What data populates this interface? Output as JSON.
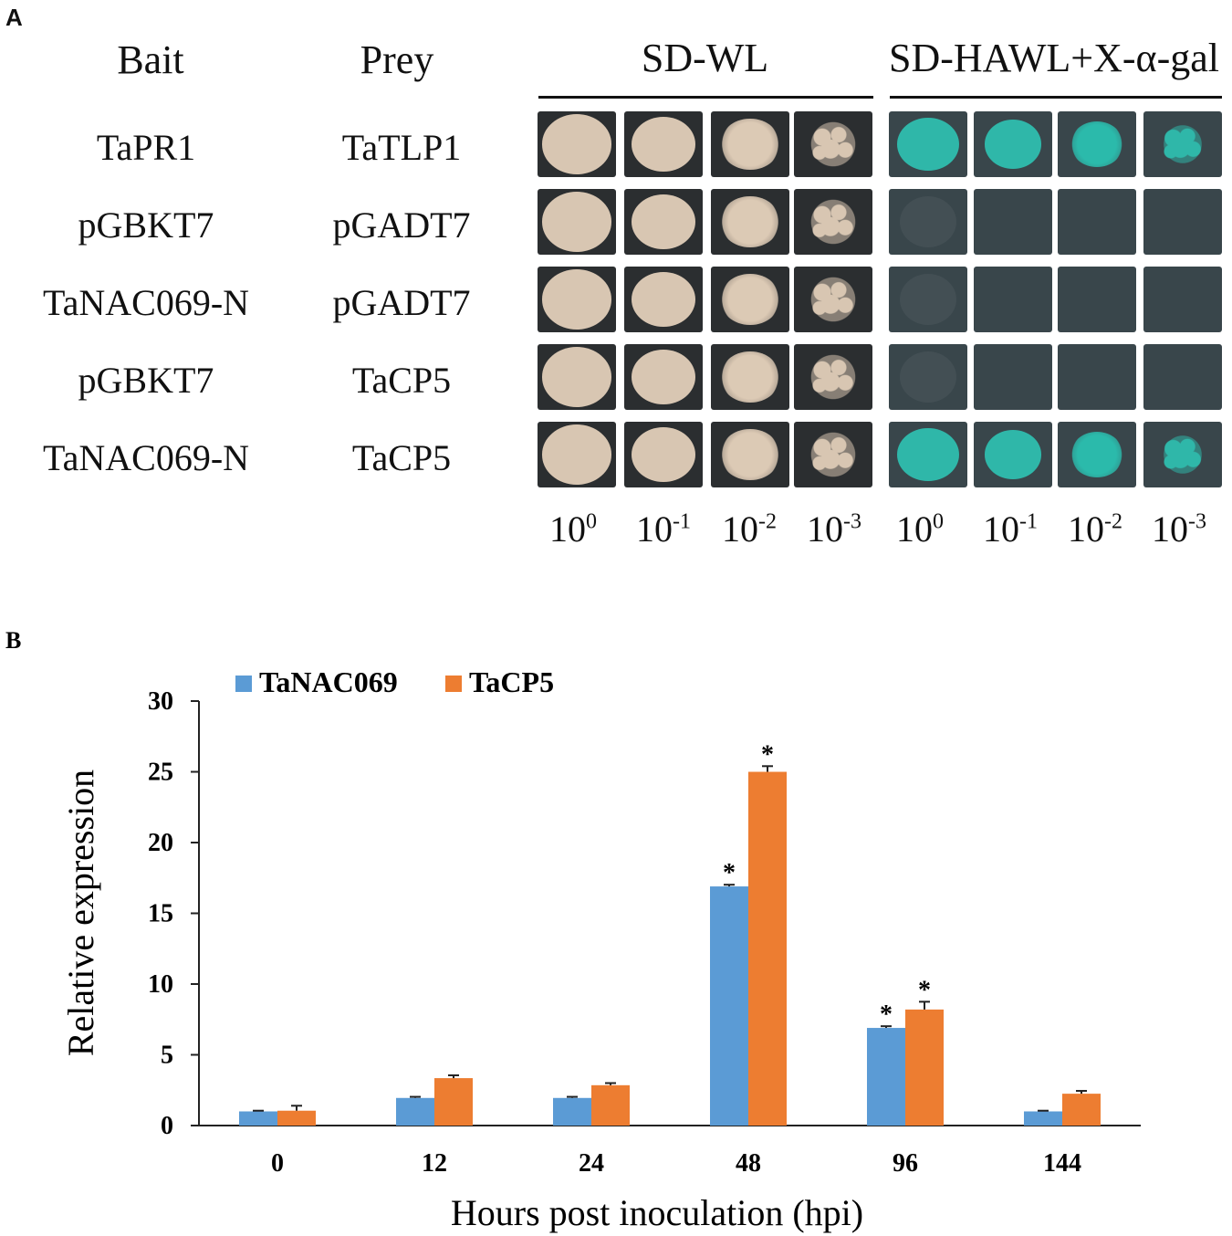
{
  "panel_a": {
    "label": "A",
    "headers": {
      "bait": "Bait",
      "prey": "Prey",
      "medium1": "SD-WL",
      "medium2": "SD-HAWL+X-α-gal"
    },
    "rows": [
      {
        "bait": "TaPR1",
        "prey": "TaTLP1",
        "interaction": "positive"
      },
      {
        "bait": "pGBKT7",
        "prey": "pGADT7",
        "interaction": "negative"
      },
      {
        "bait": "TaNAC069-N",
        "prey": "pGADT7",
        "interaction": "negative"
      },
      {
        "bait": "pGBKT7",
        "prey": "TaCP5",
        "interaction": "negative"
      },
      {
        "bait": "TaNAC069-N",
        "prey": "TaCP5",
        "interaction": "positive"
      }
    ],
    "dilutions": [
      {
        "base": "10",
        "exp": "0"
      },
      {
        "base": "10",
        "exp": "-1"
      },
      {
        "base": "10",
        "exp": "-2"
      },
      {
        "base": "10",
        "exp": "-3"
      },
      {
        "base": "10",
        "exp": "0"
      },
      {
        "base": "10",
        "exp": "-1"
      },
      {
        "base": "10",
        "exp": "-2"
      },
      {
        "base": "10",
        "exp": "-3"
      }
    ],
    "colors": {
      "colony": "#d8c6b2",
      "blue_colony": "#2fb7a9",
      "plate_wl": "#2b2e30",
      "plate_hawl": "#39464b"
    }
  },
  "panel_b": {
    "label": "B",
    "chart_data": {
      "type": "bar",
      "categories": [
        "0",
        "12",
        "24",
        "48",
        "96",
        "144"
      ],
      "series": [
        {
          "name": "TaNAC069",
          "color": "#5b9bd5",
          "values": [
            1.0,
            1.95,
            1.95,
            16.9,
            6.9,
            1.0
          ],
          "errors": [
            0.05,
            0.08,
            0.08,
            0.12,
            0.12,
            0.05
          ],
          "significant": [
            false,
            false,
            false,
            true,
            true,
            false
          ]
        },
        {
          "name": "TaCP5",
          "color": "#ed7d31",
          "values": [
            1.05,
            3.35,
            2.85,
            25.0,
            8.2,
            2.25
          ],
          "errors": [
            0.35,
            0.2,
            0.15,
            0.4,
            0.55,
            0.2
          ],
          "significant": [
            false,
            false,
            false,
            true,
            true,
            false
          ]
        }
      ],
      "yticks": [
        0,
        5,
        10,
        15,
        20,
        25,
        30
      ],
      "ylim": [
        0,
        30
      ],
      "xlabel": "Hours post inoculation (hpi)",
      "ylabel": "Relative expression",
      "significance_marker": "*",
      "legend_position": "top-left"
    }
  }
}
